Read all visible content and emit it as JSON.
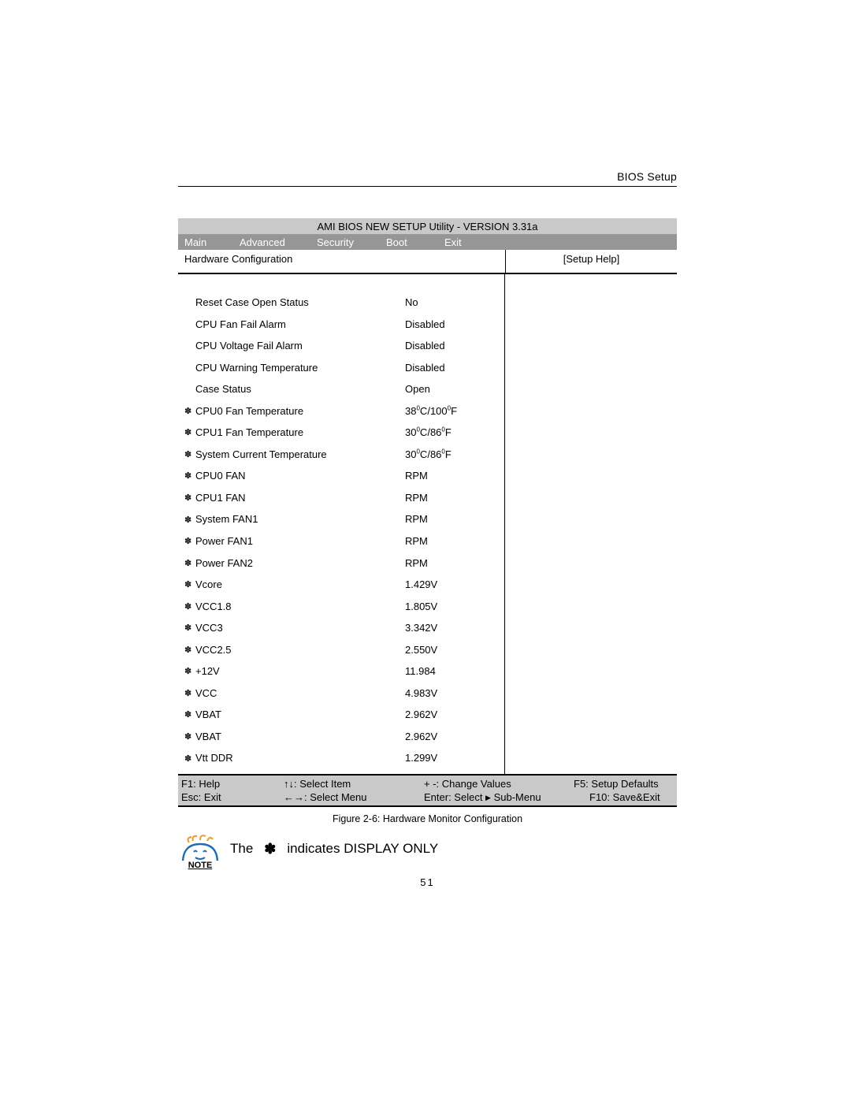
{
  "header": {
    "section": "BIOS Setup"
  },
  "bios": {
    "title": "AMI BIOS NEW SETUP Utility - VERSION 3.31a",
    "menu": {
      "main": "Main",
      "advanced": "Advanced",
      "security": "Security",
      "boot": "Boot",
      "exit": "Exit"
    },
    "subheader": {
      "left": "Hardware Configuration",
      "right": "[Setup Help]"
    },
    "rows": [
      {
        "marker": false,
        "label": "Reset Case Open Status",
        "value": "No",
        "interact": true
      },
      {
        "marker": false,
        "label": "CPU Fan Fail Alarm",
        "value": "Disabled",
        "interact": true
      },
      {
        "marker": false,
        "label": "CPU Voltage Fail  Alarm",
        "value": "Disabled",
        "interact": true
      },
      {
        "marker": false,
        "label": "CPU Warning Temperature",
        "value": "Disabled",
        "interact": true
      },
      {
        "marker": false,
        "label": "Case Status",
        "value": "Open",
        "interact": false
      },
      {
        "marker": true,
        "label": "CPU0 Fan Temperature",
        "value": "38°C/100°F",
        "interact": false,
        "degree": true
      },
      {
        "marker": true,
        "label": "CPU1 Fan Temperature",
        "value": "30°C/86°F",
        "interact": false,
        "degree": true
      },
      {
        "marker": true,
        "label": "System Current Temperature",
        "value": "30°C/86°F",
        "interact": false,
        "degree": true
      },
      {
        "marker": true,
        "label": "CPU0 FAN",
        "value": "RPM",
        "interact": false
      },
      {
        "marker": true,
        "label": "CPU1 FAN",
        "value": "RPM",
        "interact": false
      },
      {
        "marker": true,
        "label": "System FAN1",
        "value": "RPM",
        "interact": false
      },
      {
        "marker": true,
        "label": "Power FAN1",
        "value": "RPM",
        "interact": false
      },
      {
        "marker": true,
        "label": "Power FAN2",
        "value": "RPM",
        "interact": false
      },
      {
        "marker": true,
        "label": "Vcore",
        "value": "1.429V",
        "interact": false
      },
      {
        "marker": true,
        "label": "VCC1.8",
        "value": "1.805V",
        "interact": false
      },
      {
        "marker": true,
        "label": "VCC3",
        "value": "3.342V",
        "interact": false
      },
      {
        "marker": true,
        "label": "VCC2.5",
        "value": "2.550V",
        "interact": false
      },
      {
        "marker": true,
        "label": "+12V",
        "value": "11.984",
        "interact": false
      },
      {
        "marker": true,
        "label": "VCC",
        "value": "4.983V",
        "interact": false
      },
      {
        "marker": true,
        "label": "VBAT",
        "value": "2.962V",
        "interact": false
      },
      {
        "marker": true,
        "label": "VBAT",
        "value": "2.962V",
        "interact": false
      },
      {
        "marker": true,
        "label": "Vtt DDR",
        "value": "1.299V",
        "interact": false
      }
    ],
    "legend": {
      "r1": {
        "a": "F1: Help",
        "b": "↑↓: Select Item",
        "c": "+ -: Change Values",
        "d": "F5: Setup Defaults"
      },
      "r2": {
        "a": "Esc: Exit",
        "b": "←→: Select Menu",
        "c": "Enter: Select ▸ Sub-Menu",
        "d": "F10: Save&Exit"
      }
    }
  },
  "caption": "Figure 2-6: Hardware Monitor Configuration",
  "note": {
    "label": "NOTE",
    "pre": "The",
    "symbol": "✽",
    "post": "indicates DISPLAY ONLY"
  },
  "page_number": "51",
  "symbols": {
    "marker": "✽"
  },
  "colors": {
    "title_bg": "#c9c9c9",
    "menu_bg": "#969696",
    "menu_fg": "#ffffff",
    "legend_bg": "#c9c9c9",
    "rule": "#000000"
  }
}
